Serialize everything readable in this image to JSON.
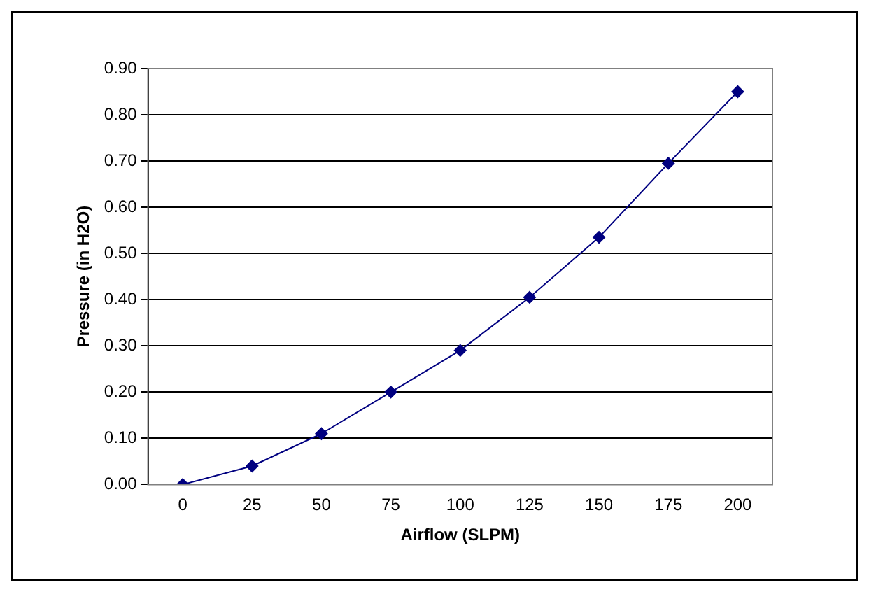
{
  "chart_data": {
    "type": "line",
    "xlabel": "Airflow (SLPM)",
    "ylabel": "Pressure (in H2O)",
    "categories": [
      "0",
      "25",
      "50",
      "75",
      "100",
      "125",
      "150",
      "175",
      "200"
    ],
    "series": [
      {
        "color": "#000080",
        "values": [
          0,
          0.04,
          0.11,
          0.2,
          0.29,
          0.405,
          0.535,
          0.695,
          0.85
        ]
      }
    ],
    "ylim": [
      0,
      0.9
    ],
    "yticks": [
      {
        "value": 0,
        "label": "0.00"
      },
      {
        "value": 0.1,
        "label": "0.10"
      },
      {
        "value": 0.2,
        "label": "0.20"
      },
      {
        "value": 0.3,
        "label": "0.30"
      },
      {
        "value": 0.4,
        "label": "0.40"
      },
      {
        "value": 0.5,
        "label": "0.50"
      },
      {
        "value": 0.6,
        "label": "0.60"
      },
      {
        "value": 0.7,
        "label": "0.70"
      },
      {
        "value": 0.8,
        "label": "0.80"
      },
      {
        "value": 0.9,
        "label": "0.90"
      }
    ],
    "grid": "y",
    "marker": "diamond",
    "line_style": "solid",
    "legend": false
  }
}
